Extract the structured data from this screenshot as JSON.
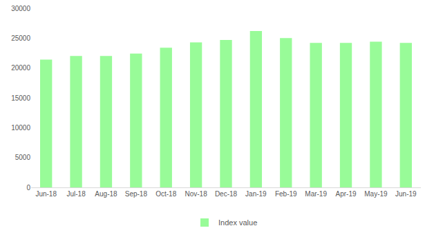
{
  "chart_data": {
    "type": "bar",
    "categories": [
      "Jun-18",
      "Jul-18",
      "Aug-18",
      "Sep-18",
      "Oct-18",
      "Nov-18",
      "Dec-18",
      "Jan-19",
      "Feb-19",
      "Mar-19",
      "Apr-19",
      "May-19",
      "Jun-19"
    ],
    "series": [
      {
        "name": "Index value",
        "color": "#98fb98",
        "values": [
          21400,
          22000,
          22000,
          22400,
          23400,
          24300,
          24700,
          26200,
          25000,
          24200,
          24200,
          24400,
          24200
        ]
      }
    ],
    "ylim": [
      0,
      30000
    ],
    "yticks": [
      0,
      5000,
      10000,
      15000,
      20000,
      25000,
      30000
    ],
    "grid": false,
    "legend": "bottom"
  }
}
